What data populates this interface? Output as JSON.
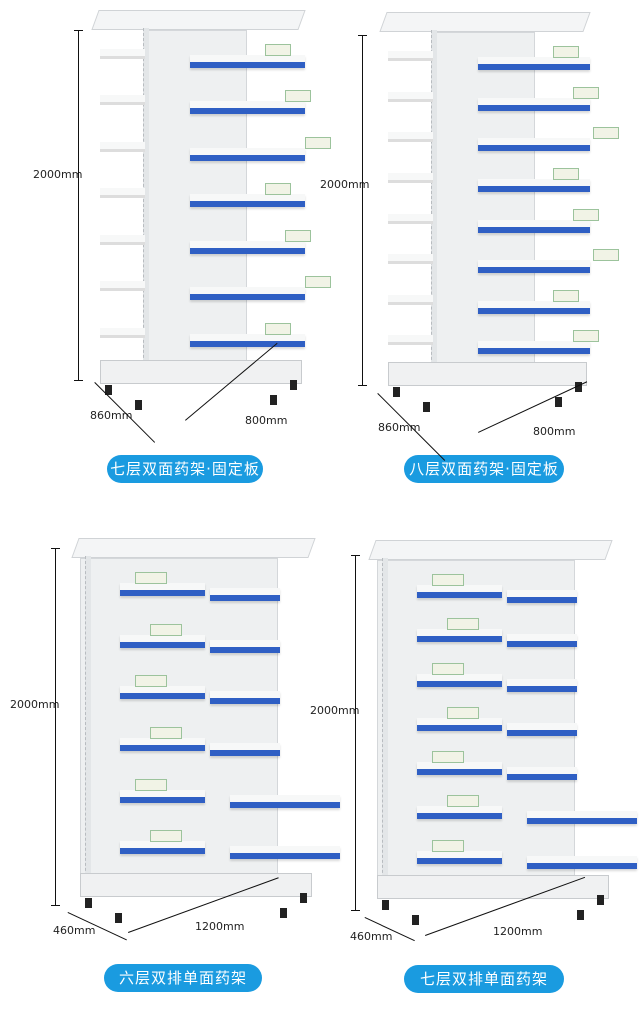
{
  "colors": {
    "pill": "#1a9be0",
    "shelf_edge": "#2f5fc4",
    "frame": "#eef0f1"
  },
  "products": [
    {
      "label": "七层双面药架·固定板",
      "tiers": 7,
      "height": "2000mm",
      "depth": "860mm",
      "width": "800mm"
    },
    {
      "label": "八层双面药架·固定板",
      "tiers": 8,
      "height": "2000mm",
      "depth": "860mm",
      "width": "800mm"
    },
    {
      "label": "六层双排单面药架",
      "tiers": 6,
      "height": "2000mm",
      "depth": "460mm",
      "width": "1200mm"
    },
    {
      "label": "七层双排单面药架",
      "tiers": 7,
      "height": "2000mm",
      "depth": "460mm",
      "width": "1200mm"
    }
  ]
}
